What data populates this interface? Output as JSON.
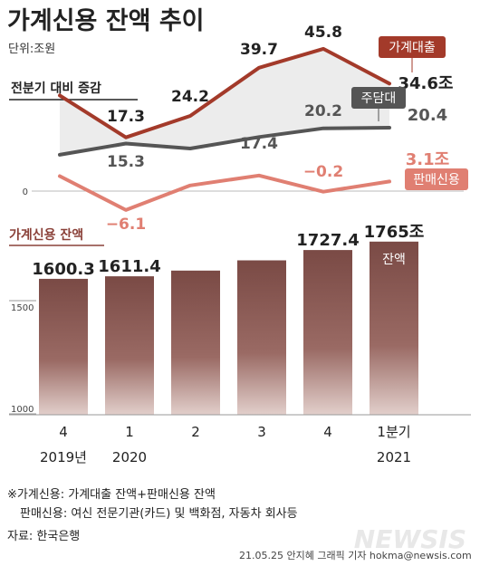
{
  "title": "가계신용 잔액 추이",
  "unit": "단위:조원",
  "colors": {
    "household_loans": "#a33a2a",
    "mortgage": "#555555",
    "sales_credit": "#e07f72",
    "bar": "#7a4a45",
    "section_label_color": "#8a4038"
  },
  "chart_data": [
    {
      "type": "line",
      "title": "전분기 대비 증감",
      "categories": [
        "2019 4",
        "2020 1",
        "2",
        "3",
        "4",
        "2021 1분기"
      ],
      "zero_label": "0",
      "series": [
        {
          "name": "가계대출",
          "values": [
            null,
            17.3,
            24.2,
            39.7,
            45.8,
            34.6
          ],
          "labels": [
            "",
            "17.3",
            "24.2",
            "39.7",
            "45.8",
            "34.6조"
          ],
          "line_values": [
            30.8,
            17.3,
            24.2,
            39.7,
            45.8,
            34.6
          ],
          "color": "#a33a2a"
        },
        {
          "name": "주담대",
          "values": [
            null,
            15.3,
            null,
            17.4,
            20.2,
            20.4
          ],
          "labels": [
            "",
            "15.3",
            "",
            "17.4",
            "20.2",
            "20.4"
          ],
          "line_values": [
            11.7,
            15.3,
            13.7,
            17.4,
            20.2,
            20.4
          ],
          "color": "#555555"
        },
        {
          "name": "판매신용",
          "values": [
            null,
            -6.1,
            null,
            null,
            -0.2,
            3.1
          ],
          "labels": [
            "",
            "−6.1",
            "",
            "",
            "−0.2",
            "3.1조"
          ],
          "line_values": [
            4.8,
            -6.1,
            1.8,
            5.0,
            -0.2,
            3.1
          ],
          "color": "#e07f72"
        }
      ]
    },
    {
      "type": "bar",
      "title": "가계신용 잔액",
      "categories": [
        "4",
        "1",
        "2",
        "3",
        "4",
        "1분기"
      ],
      "years": [
        "2019년",
        "2020",
        "",
        "",
        "",
        "2021"
      ],
      "values": [
        1600.3,
        1611.4,
        1637,
        1682,
        1727.4,
        1765
      ],
      "value_labels": [
        "1600.3",
        "1611.4",
        "",
        "",
        "1727.4",
        "1765조"
      ],
      "inner_label": "잔액",
      "ylim": [
        1000,
        1800
      ],
      "yticks": [
        "1500",
        "1000"
      ]
    }
  ],
  "notes": [
    "※가계신용: 가계대출 잔액+판매신용 잔액",
    "판매신용: 여신 전문기관(카드) 및 백화점, 자동차 회사등"
  ],
  "source": "자료: 한국은행",
  "credit": "21.05.25 안지혜 그래픽 기자 hokma@newsis.com",
  "watermark": "NEWSIS"
}
